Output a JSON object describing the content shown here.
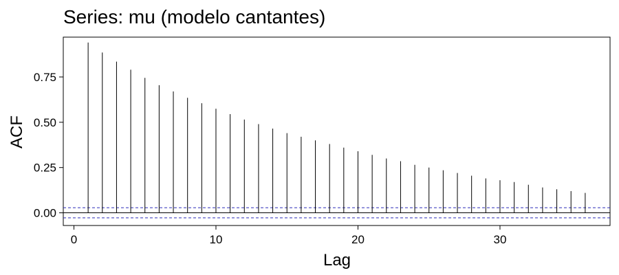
{
  "chart_data": {
    "type": "acf",
    "title": "Series: mu (modelo cantantes)",
    "xlabel": "Lag",
    "ylabel": "ACF",
    "xlim": [
      -0.75,
      37.75
    ],
    "ylim": [
      -0.07,
      0.97
    ],
    "x_ticks": [
      0,
      10,
      20,
      30
    ],
    "x_tick_labels": [
      "0",
      "10",
      "20",
      "30"
    ],
    "y_ticks": [
      0.0,
      0.25,
      0.5,
      0.75
    ],
    "y_tick_labels": [
      "0.00",
      "0.25",
      "0.50",
      "0.75"
    ],
    "lags": [
      1,
      2,
      3,
      4,
      5,
      6,
      7,
      8,
      9,
      10,
      11,
      12,
      13,
      14,
      15,
      16,
      17,
      18,
      19,
      20,
      21,
      22,
      23,
      24,
      25,
      26,
      27,
      28,
      29,
      30,
      31,
      32,
      33,
      34,
      35,
      36
    ],
    "acf": [
      0.94,
      0.885,
      0.835,
      0.79,
      0.745,
      0.705,
      0.67,
      0.635,
      0.605,
      0.575,
      0.545,
      0.515,
      0.49,
      0.465,
      0.44,
      0.42,
      0.4,
      0.38,
      0.36,
      0.34,
      0.32,
      0.3,
      0.285,
      0.265,
      0.25,
      0.235,
      0.22,
      0.205,
      0.19,
      0.18,
      0.17,
      0.155,
      0.14,
      0.13,
      0.12,
      0.11
    ],
    "confidence_bound": 0.028,
    "zero_line": 0.0,
    "colors": {
      "bars": "#000000",
      "confidence": "#2b2bb8",
      "frame": "#000000"
    }
  }
}
